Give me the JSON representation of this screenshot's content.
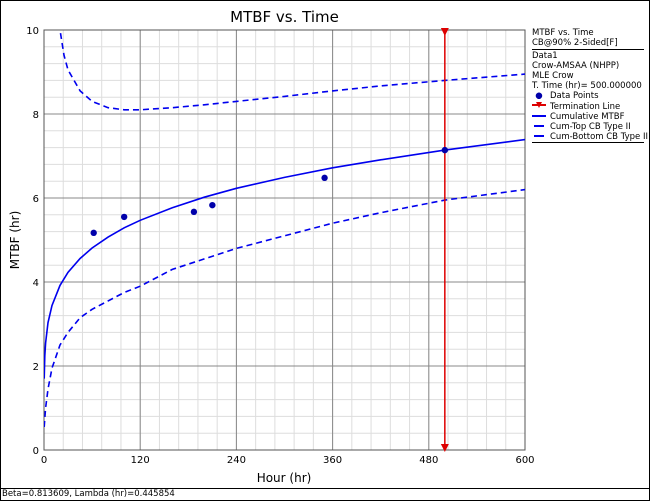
{
  "chart_data": {
    "type": "line",
    "title": "MTBF vs. Time",
    "xlabel": "Hour (hr)",
    "ylabel": "MTBF (hr)",
    "xlim": [
      0,
      600
    ],
    "ylim": [
      0,
      10
    ],
    "xticks": [
      0,
      120,
      240,
      360,
      480,
      600
    ],
    "yticks": [
      0,
      2,
      4,
      6,
      8,
      10
    ],
    "grid": true,
    "legend_position": "right",
    "data_points": {
      "name": "Data Points",
      "x": [
        62,
        100,
        187,
        210,
        350,
        500
      ],
      "y": [
        5.17,
        5.55,
        5.67,
        5.83,
        6.48,
        7.14
      ]
    },
    "termination_line": {
      "name": "Termination Line",
      "x": 500
    },
    "series": [
      {
        "name": "Cumulative MTBF",
        "style": "solid",
        "x": [
          0.3,
          1,
          2,
          5,
          10,
          20,
          30,
          45,
          60,
          80,
          100,
          120,
          160,
          200,
          240,
          300,
          360,
          420,
          500,
          600
        ],
        "y": [
          1.7,
          2.24,
          2.55,
          3.03,
          3.44,
          3.92,
          4.23,
          4.56,
          4.81,
          5.07,
          5.29,
          5.47,
          5.77,
          6.02,
          6.23,
          6.49,
          6.72,
          6.91,
          7.14,
          7.39
        ]
      },
      {
        "name": "Cum-Top CB Type II",
        "style": "dashed",
        "x": [
          18,
          20,
          25,
          30,
          45,
          60,
          80,
          100,
          120,
          160,
          200,
          240,
          300,
          360,
          420,
          500,
          600
        ],
        "y": [
          10.4,
          10.0,
          9.4,
          9.05,
          8.55,
          8.3,
          8.15,
          8.1,
          8.1,
          8.15,
          8.22,
          8.3,
          8.42,
          8.55,
          8.67,
          8.8,
          8.95
        ]
      },
      {
        "name": "Cum-Bottom CB Type II",
        "style": "dashed",
        "x": [
          0.3,
          1,
          2,
          5,
          10,
          20,
          30,
          45,
          60,
          80,
          100,
          120,
          160,
          200,
          240,
          300,
          360,
          420,
          500,
          600
        ],
        "y": [
          0.55,
          0.75,
          1.0,
          1.45,
          1.95,
          2.5,
          2.8,
          3.15,
          3.35,
          3.55,
          3.75,
          3.9,
          4.3,
          4.55,
          4.8,
          5.1,
          5.4,
          5.65,
          5.95,
          6.2
        ]
      }
    ],
    "colors": {
      "series": "#0000ee",
      "termination": "#dd0000",
      "grid_major": "#888888",
      "grid_minor": "#dddddd"
    }
  },
  "legend": {
    "title": "MTBF vs. Time",
    "subtitle": "CB@90% 2-Sided[F]",
    "lines": [
      "Data1",
      "Crow-AMSAA (NHPP)",
      "MLE Crow",
      "T. Time (hr)= 500.000000"
    ],
    "items": [
      "Data Points",
      "Termination Line",
      "Cumulative MTBF",
      "Cum-Top CB Type II",
      "Cum-Bottom CB Type II"
    ]
  },
  "footer": "Beta=0.813609, Lambda (hr)=0.445854"
}
